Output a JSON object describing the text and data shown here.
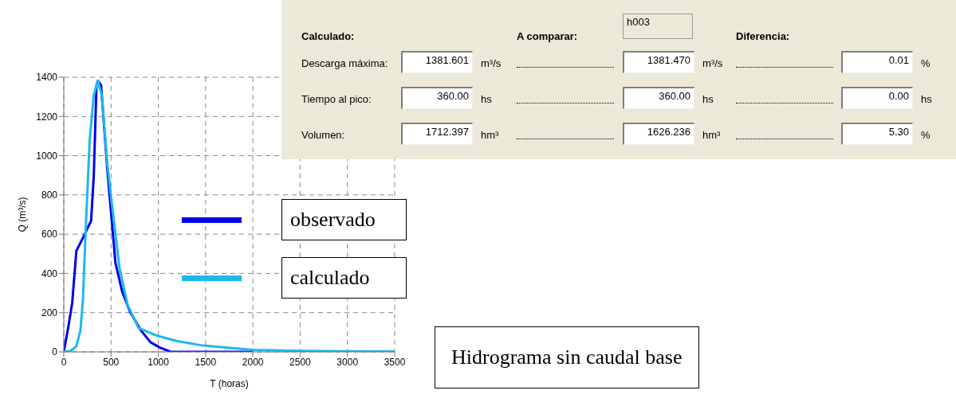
{
  "chart_data": [
    {
      "type": "line",
      "xlabel": "T (horas)",
      "ylabel": "Q (m³/s)",
      "xlim": [
        0,
        3500
      ],
      "xticks": [
        0,
        500,
        1000,
        1500,
        2000,
        2500,
        3000,
        3500
      ],
      "ylim": [
        0,
        1400
      ],
      "yticks": [
        0,
        200,
        400,
        600,
        800,
        1000,
        1200,
        1400
      ],
      "grid": true,
      "legend": "right",
      "line_style": "solid",
      "series": [
        {
          "name": "observado",
          "color": "#0000ee",
          "x": [
            0,
            46,
            89,
            133,
            203,
            289,
            317,
            346,
            360,
            394,
            460,
            546,
            617,
            703,
            817,
            917,
            1017,
            1131,
            1500,
            2000
          ],
          "values": [
            0,
            122,
            249,
            515,
            582,
            668,
            895,
            1360,
            1381,
            1360,
            934,
            455,
            309,
            202,
            109,
            49,
            22,
            0,
            0,
            0
          ]
        },
        {
          "name": "calculado",
          "color": "#1cb8f0",
          "x": [
            0,
            74,
            133,
            176,
            203,
            231,
            274,
            317,
            360,
            403,
            460,
            517,
            589,
            674,
            789,
            989,
            1189,
            1474,
            2000,
            2500,
            3000,
            3500
          ],
          "values": [
            0,
            5,
            29,
            109,
            269,
            615,
            1081,
            1307,
            1381,
            1307,
            961,
            721,
            429,
            242,
            122,
            82,
            56,
            32,
            10,
            5,
            3,
            2
          ]
        }
      ],
      "annotations": [
        "Hidrograma sin caudal base"
      ]
    },
    {
      "type": "other",
      "annotations": [
        "Calculado:",
        "A comparar:",
        "h003",
        "Diferencia:",
        "Descarga máxima:",
        "1381.601",
        "m³/s",
        "1381.470",
        "m³/s",
        "0.01",
        "%",
        "Tiempo al pico:",
        "360.00",
        "hs",
        "360.00",
        "hs",
        "0.00",
        "hs",
        "Volumen:",
        "1712.397",
        "hm³",
        "1626.236",
        "hm³",
        "5.30",
        "%"
      ]
    }
  ]
}
